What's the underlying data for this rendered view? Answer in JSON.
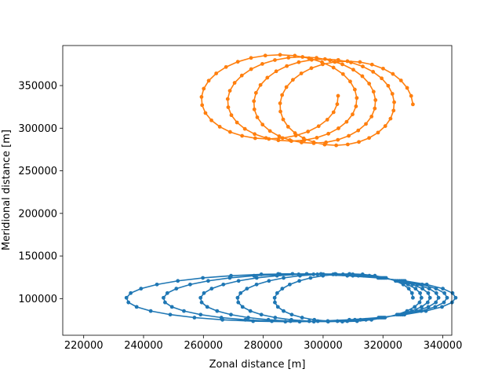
{
  "chart_data": {
    "type": "line",
    "xlabel": "Zonal distance [m]",
    "ylabel": "Meridional distance [m]",
    "xlim": [
      213000,
      343000
    ],
    "ylim": [
      57000,
      397000
    ],
    "xticks": [
      220000,
      240000,
      260000,
      280000,
      300000,
      320000,
      340000
    ],
    "yticks": [
      100000,
      150000,
      200000,
      250000,
      300000,
      350000
    ],
    "grid": false,
    "series": [
      {
        "color": "#1f77b4",
        "marker": "circle",
        "spiral": {
          "x_start": 330000,
          "x_end": 225000,
          "x_center_start": 310000,
          "x_center_end": 285000,
          "y_center": 101000,
          "y_amplitude": 28000,
          "turns": 5.25,
          "points": 168
        }
      },
      {
        "color": "#ff7f0e",
        "marker": "circle",
        "spiral": {
          "x_start": 330000,
          "x_end": 255000,
          "x_center_start": 310000,
          "x_center_end": 280000,
          "y_center": 333000,
          "y_amplitude": 50000,
          "turns": 4.0,
          "points": 128,
          "y_drift": 10000
        }
      }
    ]
  }
}
